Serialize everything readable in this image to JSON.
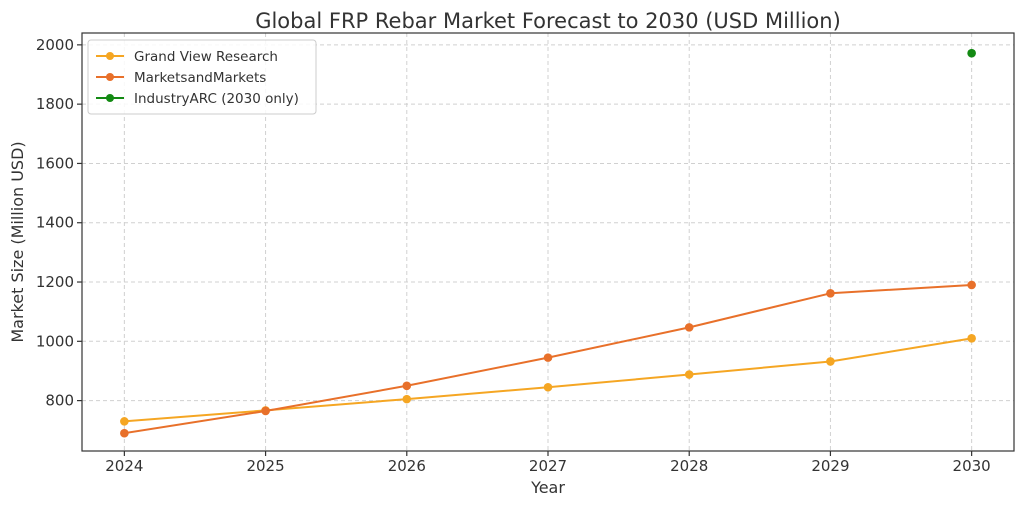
{
  "chart_data": {
    "type": "line",
    "title": "Global FRP Rebar Market Forecast to 2030 (USD Million)",
    "xlabel": "Year",
    "ylabel": "Market Size (Million USD)",
    "x": [
      2024,
      2025,
      2026,
      2027,
      2028,
      2029,
      2030
    ],
    "xlim": [
      2023.7,
      2030.3
    ],
    "ylim": [
      630,
      2040
    ],
    "yticks": [
      800,
      1000,
      1200,
      1400,
      1600,
      1800,
      2000
    ],
    "grid": true,
    "legend_position": "top-left",
    "series": [
      {
        "name": "Grand View Research",
        "color": "#f5a623",
        "x": [
          2024,
          2025,
          2026,
          2027,
          2028,
          2029,
          2030
        ],
        "values": [
          730,
          767,
          805,
          845,
          888,
          932,
          1010
        ]
      },
      {
        "name": "MarketsandMarkets",
        "color": "#e8702a",
        "x": [
          2024,
          2025,
          2026,
          2027,
          2028,
          2029,
          2030
        ],
        "values": [
          690,
          765,
          850,
          945,
          1047,
          1162,
          1190
        ]
      },
      {
        "name": "IndustryARC (2030 only)",
        "color": "#138a13",
        "x": [
          2030
        ],
        "values": [
          1972
        ]
      }
    ]
  }
}
